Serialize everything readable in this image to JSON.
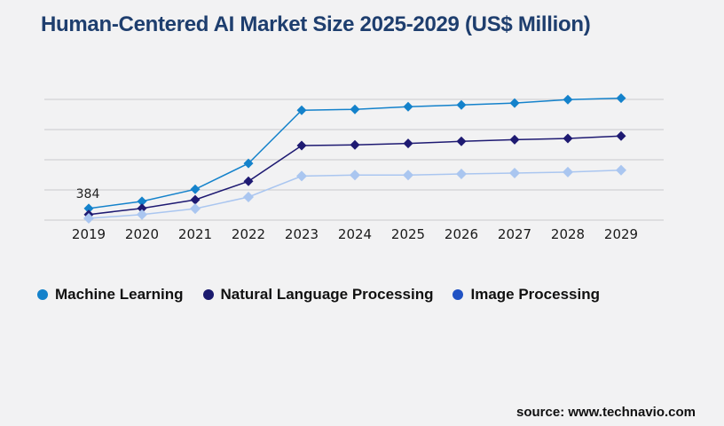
{
  "title": "Human-Centered AI Market Size 2025-2029 (US$ Million)",
  "source": "source: www.technavio.com",
  "colors": {
    "background": "#f2f2f3",
    "title": "#1e3e6e",
    "gridline": "#c9cacd",
    "axis_label": "#1a1a1a",
    "annotation": "#222222"
  },
  "legend": {
    "items": [
      {
        "label": "Machine Learning",
        "color": "#1482cb"
      },
      {
        "label": "Natural Language Processing",
        "color": "#1b1a6e"
      },
      {
        "label": "Image Processing",
        "color": "#2153c4"
      }
    ]
  },
  "chart_data": {
    "type": "line",
    "title": "Human-Centered AI Market Size 2025-2029 (US$ Million)",
    "x": [
      2019,
      2020,
      2021,
      2022,
      2023,
      2024,
      2025,
      2026,
      2027,
      2028,
      2029
    ],
    "xlabel": "",
    "ylabel": "",
    "ylim": [
      0,
      4350
    ],
    "gridline_values": [
      0,
      1000,
      2000,
      3000,
      4000
    ],
    "grid": true,
    "legend_position": "bottom",
    "marker": "diamond",
    "series": [
      {
        "name": "Machine Learning",
        "color": "#1482cb",
        "values": [
          384,
          620,
          1020,
          1880,
          3640,
          3670,
          3760,
          3815,
          3880,
          3990,
          4040
        ]
      },
      {
        "name": "Natural Language Processing",
        "color": "#1e1a72",
        "values": [
          185,
          390,
          675,
          1285,
          2470,
          2490,
          2540,
          2610,
          2665,
          2705,
          2785
        ]
      },
      {
        "name": "Image Processing",
        "color": "#aac6f0",
        "values": [
          60,
          185,
          380,
          765,
          1460,
          1490,
          1495,
          1530,
          1560,
          1590,
          1655
        ]
      }
    ],
    "annotations": [
      {
        "series": "Machine Learning",
        "x": 2019,
        "text": "384"
      }
    ]
  }
}
